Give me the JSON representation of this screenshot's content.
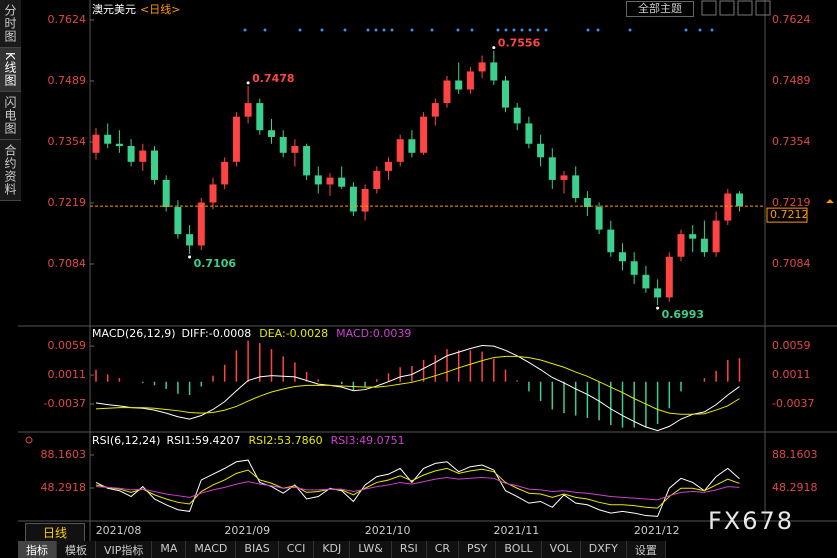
{
  "sidebar": [
    "分时图",
    "K线图",
    "闪电图",
    "合约资料"
  ],
  "theme_button": "全部主题",
  "period_tab": "日线",
  "watermark": "FX678",
  "toolbar": [
    "指标",
    "模板",
    "VIP指标",
    "MA",
    "MACD",
    "BIAS",
    "CCI",
    "KDJ",
    "LW&",
    "RSI",
    "CR",
    "PSY",
    "BOLL",
    "VOL",
    "DXFY",
    "设置"
  ],
  "chart_data": [
    {
      "type": "candlestick",
      "title": "澳元美元",
      "subtitle": "<日线>",
      "up_color": "#ff4444",
      "down_color": "#3ccf8e",
      "ylim": [
        0.6949,
        0.7657
      ],
      "yticks": [
        0.7624,
        0.7489,
        0.7354,
        0.7219,
        0.7084
      ],
      "categories": [
        null,
        "2021/08",
        null,
        null,
        null,
        null,
        null,
        null,
        null,
        null,
        null,
        null,
        "2021/09",
        null,
        null,
        null,
        null,
        null,
        null,
        null,
        null,
        null,
        null,
        null,
        "2021/10",
        null,
        null,
        null,
        null,
        null,
        null,
        null,
        null,
        null,
        null,
        "2021/11",
        null,
        null,
        null,
        null,
        null,
        null,
        null,
        null,
        null,
        null,
        null,
        "2021/12",
        null,
        null,
        null,
        null,
        null,
        null,
        null,
        null
      ],
      "candles": [
        [
          0.733,
          0.7385,
          0.7315,
          0.737
        ],
        [
          0.737,
          0.7395,
          0.734,
          0.735
        ],
        [
          0.735,
          0.738,
          0.733,
          0.7345
        ],
        [
          0.7345,
          0.736,
          0.73,
          0.731
        ],
        [
          0.731,
          0.735,
          0.729,
          0.7335
        ],
        [
          0.7335,
          0.7345,
          0.726,
          0.727
        ],
        [
          0.727,
          0.728,
          0.72,
          0.721
        ],
        [
          0.721,
          0.7225,
          0.714,
          0.715
        ],
        [
          0.715,
          0.717,
          0.7106,
          0.7125
        ],
        [
          0.7125,
          0.723,
          0.7115,
          0.722
        ],
        [
          0.722,
          0.7275,
          0.7205,
          0.726
        ],
        [
          0.726,
          0.732,
          0.725,
          0.731
        ],
        [
          0.731,
          0.742,
          0.73,
          0.741
        ],
        [
          0.741,
          0.7478,
          0.7395,
          0.744
        ],
        [
          0.744,
          0.745,
          0.737,
          0.738
        ],
        [
          0.738,
          0.7405,
          0.735,
          0.7365
        ],
        [
          0.7365,
          0.738,
          0.732,
          0.733
        ],
        [
          0.733,
          0.736,
          0.73,
          0.7345
        ],
        [
          0.7345,
          0.735,
          0.727,
          0.728
        ],
        [
          0.728,
          0.73,
          0.724,
          0.726
        ],
        [
          0.726,
          0.7285,
          0.7235,
          0.7275
        ],
        [
          0.7275,
          0.73,
          0.725,
          0.7255
        ],
        [
          0.7255,
          0.7265,
          0.719,
          0.72
        ],
        [
          0.72,
          0.726,
          0.718,
          0.725
        ],
        [
          0.725,
          0.73,
          0.724,
          0.729
        ],
        [
          0.729,
          0.732,
          0.727,
          0.731
        ],
        [
          0.731,
          0.737,
          0.73,
          0.736
        ],
        [
          0.736,
          0.738,
          0.732,
          0.733
        ],
        [
          0.733,
          0.742,
          0.7325,
          0.741
        ],
        [
          0.741,
          0.745,
          0.739,
          0.744
        ],
        [
          0.744,
          0.75,
          0.743,
          0.749
        ],
        [
          0.749,
          0.753,
          0.746,
          0.747
        ],
        [
          0.747,
          0.752,
          0.746,
          0.751
        ],
        [
          0.751,
          0.7545,
          0.7495,
          0.753
        ],
        [
          0.753,
          0.7556,
          0.748,
          0.749
        ],
        [
          0.749,
          0.75,
          0.742,
          0.743
        ],
        [
          0.743,
          0.744,
          0.738,
          0.7395
        ],
        [
          0.7395,
          0.741,
          0.734,
          0.735
        ],
        [
          0.735,
          0.737,
          0.73,
          0.732
        ],
        [
          0.732,
          0.734,
          0.725,
          0.727
        ],
        [
          0.727,
          0.729,
          0.724,
          0.728
        ],
        [
          0.728,
          0.73,
          0.722,
          0.723
        ],
        [
          0.723,
          0.7245,
          0.719,
          0.721
        ],
        [
          0.721,
          0.722,
          0.715,
          0.716
        ],
        [
          0.716,
          0.718,
          0.71,
          0.711
        ],
        [
          0.711,
          0.713,
          0.707,
          0.709
        ],
        [
          0.709,
          0.711,
          0.704,
          0.706
        ],
        [
          0.706,
          0.708,
          0.702,
          0.703
        ],
        [
          0.703,
          0.705,
          0.6993,
          0.701
        ],
        [
          0.701,
          0.711,
          0.7,
          0.71
        ],
        [
          0.71,
          0.716,
          0.709,
          0.715
        ],
        [
          0.715,
          0.717,
          0.711,
          0.714
        ],
        [
          0.714,
          0.718,
          0.71,
          0.711
        ],
        [
          0.711,
          0.72,
          0.71,
          0.718
        ],
        [
          0.718,
          0.725,
          0.717,
          0.724
        ],
        [
          0.724,
          0.7245,
          0.72,
          0.7212
        ]
      ],
      "annotations": {
        "highs": [
          0.7478,
          0.7556
        ],
        "lows": [
          0.7106,
          0.6993
        ]
      },
      "last_price": 0.7212,
      "last_price_color": "#ff9900"
    },
    {
      "type": "macd",
      "title": "MACD(26,12,9)",
      "ylim": [
        -0.008,
        0.0089
      ],
      "yticks": [
        0.0059,
        0.0011,
        -0.0037
      ],
      "up_color": "#ff4444",
      "down_color": "#3ccf8e",
      "series": [
        {
          "name": "DIFF:-0.0008",
          "color": "#ffffff",
          "values": [
            -0.0035,
            -0.0038,
            -0.004,
            -0.0043,
            -0.0044,
            -0.0047,
            -0.0052,
            -0.0058,
            -0.0062,
            -0.0056,
            -0.0046,
            -0.0033,
            -0.0015,
            0.0002,
            0.0008,
            0.001,
            0.0009,
            0.0008,
            0.0002,
            -0.0004,
            -0.0006,
            -0.0009,
            -0.0015,
            -0.0013,
            -0.0007,
            0.0,
            0.0008,
            0.0012,
            0.0022,
            0.0032,
            0.0043,
            0.0049,
            0.0055,
            0.006,
            0.0059,
            0.0052,
            0.0043,
            0.0032,
            0.002,
            0.0007,
            -0.0002,
            -0.0012,
            -0.0021,
            -0.0032,
            -0.0045,
            -0.0056,
            -0.0066,
            -0.0075,
            -0.0081,
            -0.0074,
            -0.0062,
            -0.0054,
            -0.005,
            -0.0038,
            -0.0022,
            -0.0008
          ]
        },
        {
          "name": "DEA:-0.0028",
          "color": "#e8e800",
          "values": [
            -0.0045,
            -0.0044,
            -0.0043,
            -0.0043,
            -0.0043,
            -0.0044,
            -0.0046,
            -0.0048,
            -0.0051,
            -0.0052,
            -0.0051,
            -0.0047,
            -0.0041,
            -0.0032,
            -0.0024,
            -0.0017,
            -0.0012,
            -0.0008,
            -0.0006,
            -0.0006,
            -0.0006,
            -0.0007,
            -0.0008,
            -0.0009,
            -0.0009,
            -0.0007,
            -0.0004,
            -0.0001,
            0.0004,
            0.001,
            0.0016,
            0.0023,
            0.0029,
            0.0035,
            0.004,
            0.0042,
            0.0042,
            0.004,
            0.0036,
            0.003,
            0.0024,
            0.0016,
            0.0009,
            0.0,
            -0.0009,
            -0.0018,
            -0.0028,
            -0.0037,
            -0.0046,
            -0.0052,
            -0.0054,
            -0.0054,
            -0.0053,
            -0.0047,
            -0.004,
            -0.0028
          ]
        },
        {
          "name": "MACD:0.0039",
          "color": "#d040d0",
          "bars": true,
          "values": [
            0.002,
            0.0012,
            0.0006,
            0.0,
            -0.0002,
            -0.0006,
            -0.0012,
            -0.002,
            -0.0022,
            -0.0008,
            0.001,
            0.0028,
            0.0052,
            0.0068,
            0.0064,
            0.0054,
            0.0042,
            0.0032,
            0.0016,
            0.0004,
            0.0,
            -0.0004,
            -0.0014,
            -0.0008,
            0.0004,
            0.0014,
            0.0024,
            0.0026,
            0.0036,
            0.0044,
            0.0054,
            0.0052,
            0.0052,
            0.005,
            0.0038,
            0.002,
            0.0002,
            -0.0016,
            -0.0032,
            -0.0046,
            -0.0052,
            -0.0056,
            -0.006,
            -0.0064,
            -0.0072,
            -0.0076,
            -0.0076,
            -0.0076,
            -0.007,
            -0.0044,
            -0.0016,
            0.0,
            0.0006,
            0.0018,
            0.0036,
            0.0039
          ]
        }
      ]
    },
    {
      "type": "line",
      "title": "RSI(6,12,24)",
      "ylim": [
        9.63,
        112.32
      ],
      "yticks": [
        88.1603,
        48.2918
      ],
      "series": [
        {
          "name": "RSI1:59.4207",
          "color": "#ffffff",
          "values": [
            55,
            48,
            45,
            38,
            50,
            35,
            28,
            22,
            20,
            58,
            65,
            72,
            80,
            82,
            55,
            50,
            42,
            52,
            35,
            38,
            48,
            45,
            32,
            52,
            62,
            65,
            72,
            55,
            72,
            78,
            80,
            68,
            74,
            76,
            70,
            45,
            38,
            30,
            32,
            25,
            40,
            30,
            28,
            22,
            18,
            20,
            18,
            15,
            14,
            48,
            60,
            55,
            45,
            62,
            72,
            59.4207
          ]
        },
        {
          "name": "RSI2:53.7860",
          "color": "#e8e800",
          "values": [
            52,
            49,
            47,
            43,
            47,
            40,
            35,
            31,
            29,
            44,
            52,
            58,
            66,
            70,
            58,
            54,
            48,
            51,
            43,
            44,
            47,
            46,
            40,
            48,
            55,
            58,
            63,
            57,
            64,
            69,
            72,
            66,
            69,
            71,
            68,
            55,
            48,
            42,
            41,
            37,
            41,
            37,
            35,
            31,
            28,
            28,
            27,
            25,
            24,
            38,
            48,
            48,
            45,
            52,
            59,
            53.786
          ]
        },
        {
          "name": "RSI3:49.0751",
          "color": "#d040d0",
          "values": [
            50,
            49,
            48,
            46,
            47,
            44,
            41,
            39,
            37,
            42,
            46,
            49,
            53,
            56,
            53,
            51,
            48,
            49,
            46,
            46,
            47,
            47,
            44,
            47,
            50,
            52,
            55,
            53,
            56,
            59,
            61,
            59,
            60,
            61,
            60,
            54,
            51,
            47,
            46,
            44,
            45,
            43,
            42,
            40,
            38,
            37,
            36,
            35,
            34,
            39,
            43,
            44,
            43,
            46,
            50,
            49.0751
          ]
        }
      ]
    }
  ]
}
